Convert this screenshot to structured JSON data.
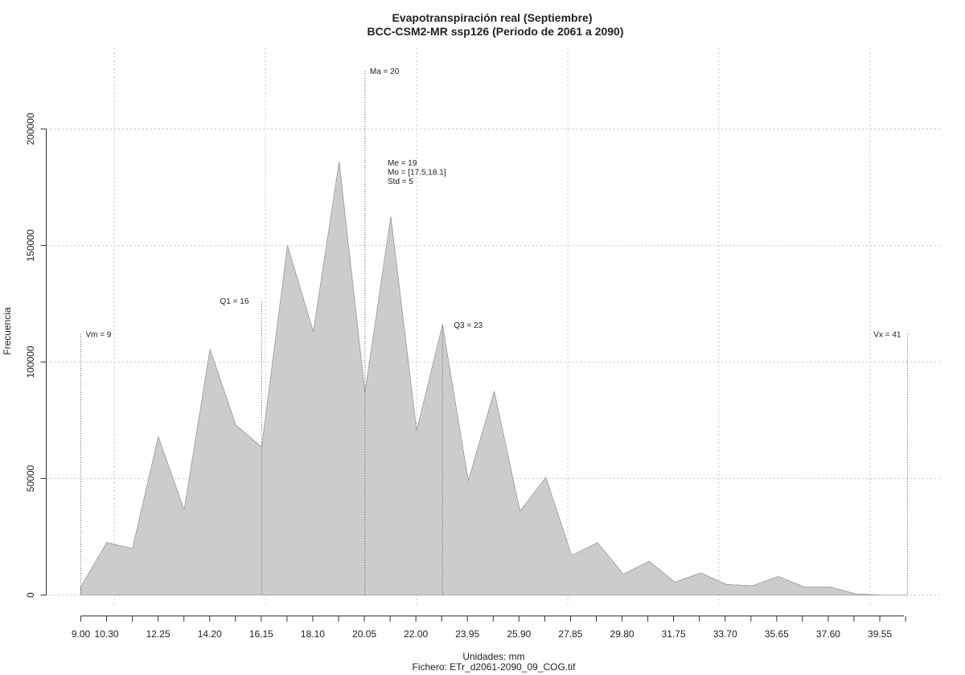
{
  "chart_data": {
    "type": "area",
    "title": "Evapotranspiración real (Septiembre)",
    "subtitle": "BCC-CSM2-MR ssp126 (Periodo de 2061 a 2090)",
    "xlabel": "Unidades: mm",
    "footer": "Fichero: ETr_d2061-2090_09_COG.tif",
    "ylabel": "Frecuencia",
    "xlim": [
      9.0,
      41.0
    ],
    "ylim": [
      0,
      200000
    ],
    "x_ticks": [
      "9.00",
      "10.30",
      "12.25",
      "14.20",
      "16.15",
      "18.10",
      "20.05",
      "22.00",
      "23.95",
      "25.90",
      "27.85",
      "29.80",
      "31.75",
      "33.70",
      "35.65",
      "37.60",
      "39.55"
    ],
    "y_ticks": [
      "0",
      "50000",
      "100000",
      "150000",
      "200000"
    ],
    "grid": true,
    "fill_color": "#cccccc",
    "line_color": "#999999",
    "x": [
      9.0,
      10.0,
      11.0,
      12.0,
      13.0,
      14.0,
      15.0,
      16.0,
      17.0,
      18.0,
      19.0,
      20.0,
      21.0,
      22.0,
      23.0,
      24.0,
      25.0,
      26.0,
      27.0,
      28.0,
      29.0,
      30.0,
      31.0,
      32.0,
      33.0,
      34.0,
      35.0,
      36.0,
      37.0,
      38.0,
      39.0,
      40.0,
      41.0
    ],
    "values": [
      3500,
      22500,
      20000,
      68000,
      36500,
      105500,
      73000,
      63500,
      150000,
      113000,
      186000,
      87000,
      162500,
      70500,
      116000,
      49000,
      87500,
      36000,
      50500,
      17000,
      22500,
      9000,
      14500,
      5500,
      9500,
      4500,
      4000,
      8000,
      3500,
      3500,
      500,
      0,
      0
    ],
    "annotations": [
      {
        "label": "Vm = 9",
        "x": 9.0,
        "line_top": 112000
      },
      {
        "label": "Q1 = 16",
        "x": 16.0,
        "line_top": 126000
      },
      {
        "label": "Ma = 20",
        "x": 20.0,
        "line_top": 225000
      },
      {
        "label": "Q3 = 23",
        "x": 23.0,
        "line_top": 116000
      },
      {
        "label": "Vx = 41",
        "x": 41.0,
        "line_top": 112000
      }
    ],
    "stats": [
      "Me = 19",
      "Mo = [17.5,18.1]",
      "Std = 5"
    ]
  }
}
